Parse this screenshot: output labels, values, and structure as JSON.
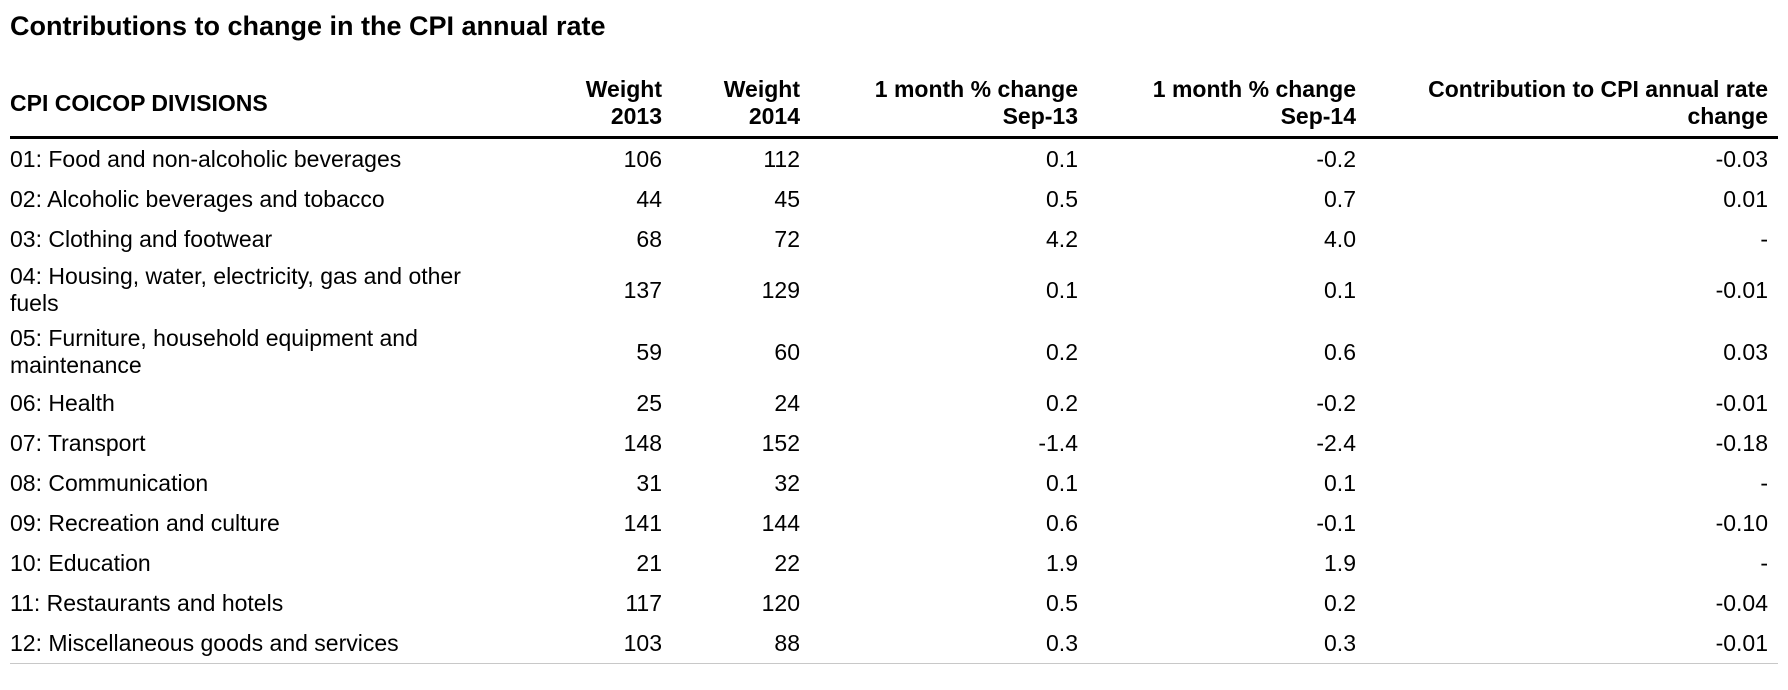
{
  "title": "Contributions to change in the CPI annual rate",
  "table": {
    "headers": [
      {
        "lines": [
          "CPI COICOP DIVISIONS"
        ]
      },
      {
        "lines": [
          "Weight",
          "2013"
        ]
      },
      {
        "lines": [
          "Weight",
          "2014"
        ]
      },
      {
        "lines": [
          "1 month % change",
          "Sep-13"
        ]
      },
      {
        "lines": [
          "1 month % change",
          "Sep-14"
        ]
      },
      {
        "lines": [
          "Contribution to CPI annual rate",
          "change"
        ]
      }
    ],
    "rows": [
      {
        "division": [
          "01: Food and non-alcoholic beverages"
        ],
        "w2013": "106",
        "w2014": "112",
        "m2013": "0.1",
        "m2014": "-0.2",
        "contribution": "-0.03"
      },
      {
        "division": [
          "02: Alcoholic beverages and tobacco"
        ],
        "w2013": "44",
        "w2014": "45",
        "m2013": "0.5",
        "m2014": "0.7",
        "contribution": "0.01"
      },
      {
        "division": [
          "03: Clothing and footwear"
        ],
        "w2013": "68",
        "w2014": "72",
        "m2013": "4.2",
        "m2014": "4.0",
        "contribution": "-"
      },
      {
        "division": [
          "04: Housing, water, electricity, gas and other",
          "fuels"
        ],
        "w2013": "137",
        "w2014": "129",
        "m2013": "0.1",
        "m2014": "0.1",
        "contribution": "-0.01"
      },
      {
        "division": [
          "05: Furniture, household equipment and",
          "maintenance"
        ],
        "w2013": "59",
        "w2014": "60",
        "m2013": "0.2",
        "m2014": "0.6",
        "contribution": "0.03"
      },
      {
        "division": [
          "06: Health"
        ],
        "w2013": "25",
        "w2014": "24",
        "m2013": "0.2",
        "m2014": "-0.2",
        "contribution": "-0.01"
      },
      {
        "division": [
          "07: Transport"
        ],
        "w2013": "148",
        "w2014": "152",
        "m2013": "-1.4",
        "m2014": "-2.4",
        "contribution": "-0.18"
      },
      {
        "division": [
          "08: Communication"
        ],
        "w2013": "31",
        "w2014": "32",
        "m2013": "0.1",
        "m2014": "0.1",
        "contribution": "-"
      },
      {
        "division": [
          "09: Recreation and culture"
        ],
        "w2013": "141",
        "w2014": "144",
        "m2013": "0.6",
        "m2014": "-0.1",
        "contribution": "-0.10"
      },
      {
        "division": [
          "10: Education"
        ],
        "w2013": "21",
        "w2014": "22",
        "m2013": "1.9",
        "m2014": "1.9",
        "contribution": "-"
      },
      {
        "division": [
          "11: Restaurants and hotels"
        ],
        "w2013": "117",
        "w2014": "120",
        "m2013": "0.5",
        "m2014": "0.2",
        "contribution": "-0.04"
      },
      {
        "division": [
          "12: Miscellaneous goods and services"
        ],
        "w2013": "103",
        "w2014": "88",
        "m2013": "0.3",
        "m2014": "0.3",
        "contribution": "-0.01"
      }
    ]
  }
}
